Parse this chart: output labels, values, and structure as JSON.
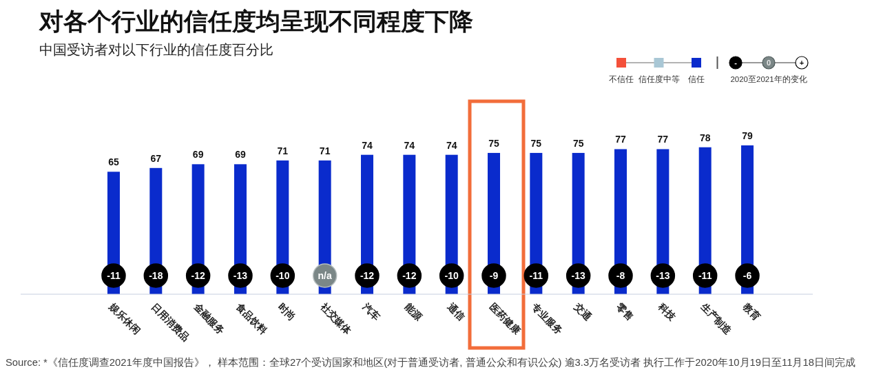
{
  "chart_data": {
    "type": "bar",
    "title": "对各个行业的信任度均呈现不同程度下降",
    "subtitle": "中国受访者对以下行业的信任度百分比",
    "categories": [
      "娱乐休闲",
      "日用消费品",
      "金融服务",
      "食品饮料",
      "时尚",
      "社交媒体",
      "汽车",
      "能源",
      "通信",
      "医药健康",
      "专业服务",
      "交通",
      "零售",
      "科技",
      "生产制造",
      "教育"
    ],
    "series": [
      {
        "name": "不信任",
        "color": "#f4503a",
        "values": [
          null,
          null,
          null,
          null,
          null,
          null,
          null,
          null,
          null,
          null,
          null,
          null,
          null,
          null,
          null,
          null
        ]
      },
      {
        "name": "信任度中等",
        "color": "#a9c7d5",
        "values": [
          null,
          null,
          null,
          null,
          null,
          null,
          null,
          null,
          null,
          null,
          null,
          null,
          null,
          null,
          null,
          null
        ]
      },
      {
        "name": "信任",
        "color": "#0a2bcc",
        "values": [
          65,
          67,
          69,
          69,
          71,
          71,
          74,
          74,
          74,
          75,
          75,
          75,
          77,
          77,
          78,
          79
        ]
      }
    ],
    "data_labels": true,
    "legend": "top right",
    "annotations": [
      {
        "text": "-11",
        "x": "娱乐休闲"
      },
      {
        "text": "-18",
        "x": "日用消费品"
      },
      {
        "text": "-12",
        "x": "金融服务"
      },
      {
        "text": "-13",
        "x": "食品饮料"
      },
      {
        "text": "-10",
        "x": "时尚"
      },
      {
        "text": "n/a",
        "x": "社交媒体"
      },
      {
        "text": "-12",
        "x": "汽车"
      },
      {
        "text": "-12",
        "x": "能源"
      },
      {
        "text": "-10",
        "x": "通信"
      },
      {
        "text": "-9",
        "x": "医药健康"
      },
      {
        "text": "-11",
        "x": "专业服务"
      },
      {
        "text": "-13",
        "x": "交通"
      },
      {
        "text": "-8",
        "x": "零售"
      },
      {
        "text": "-13",
        "x": "科技"
      },
      {
        "text": "-11",
        "x": "生产制造"
      },
      {
        "text": "-6",
        "x": "教育"
      },
      "-",
      "0",
      "+",
      "2020至2021年的变化",
      "Source: *《信任度调查2021年度中国报告》， 样本范围：全球27个受访国家和地区(对于普通受访者, 普通公众和有识公众) 逾3.3万名受访者 执行工作于2020年10月19日至11月18日间完成"
    ]
  }
}
